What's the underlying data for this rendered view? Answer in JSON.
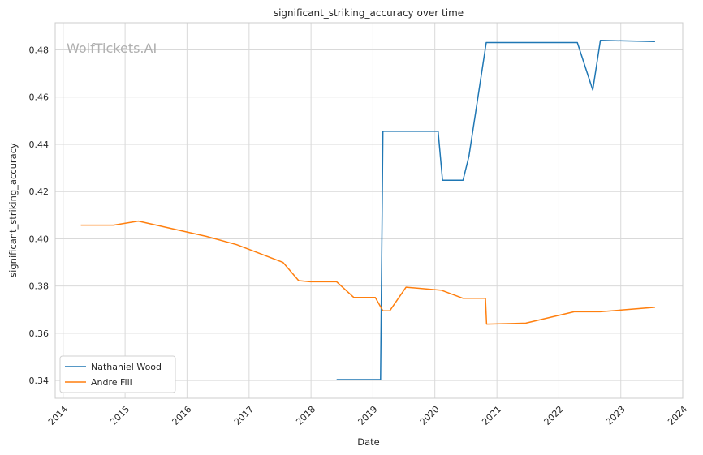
{
  "chart_data": {
    "type": "line",
    "title": "significant_striking_accuracy over time",
    "xlabel": "Date",
    "ylabel": "significant_striking_accuracy",
    "watermark": "WolfTickets.AI",
    "x_ticks": [
      "2014",
      "2015",
      "2016",
      "2017",
      "2018",
      "2019",
      "2020",
      "2021",
      "2022",
      "2023",
      "2024"
    ],
    "y_ticks": [
      "0.34",
      "0.36",
      "0.38",
      "0.40",
      "0.42",
      "0.44",
      "0.46",
      "0.48"
    ],
    "xlim": [
      "2013-11-15",
      "2024-01-01"
    ],
    "ylim": [
      0.3325,
      0.4915
    ],
    "grid": true,
    "legend_position": "lower-left",
    "series": [
      {
        "name": "Nathaniel Wood",
        "color": "#1f77b4",
        "points": [
          [
            "2018-06-01",
            0.3404
          ],
          [
            "2019-02-15",
            0.3404
          ],
          [
            "2019-03-01",
            0.4455
          ],
          [
            "2020-01-20",
            0.4455
          ],
          [
            "2020-02-15",
            0.4248
          ],
          [
            "2020-06-15",
            0.4248
          ],
          [
            "2020-07-20",
            0.435
          ],
          [
            "2020-10-30",
            0.4831
          ],
          [
            "2022-04-20",
            0.4831
          ],
          [
            "2022-07-20",
            0.463
          ],
          [
            "2022-09-03",
            0.484
          ],
          [
            "2023-07-22",
            0.4835
          ]
        ]
      },
      {
        "name": "Andre Fili",
        "color": "#ff7f0e",
        "points": [
          [
            "2014-04-15",
            0.4058
          ],
          [
            "2014-10-25",
            0.4058
          ],
          [
            "2015-03-20",
            0.4075
          ],
          [
            "2016-04-25",
            0.401
          ],
          [
            "2016-10-20",
            0.3975
          ],
          [
            "2017-07-20",
            0.39
          ],
          [
            "2017-10-20",
            0.3823
          ],
          [
            "2017-12-30",
            0.3818
          ],
          [
            "2018-06-01",
            0.3818
          ],
          [
            "2018-09-10",
            0.3752
          ],
          [
            "2019-01-15",
            0.3752
          ],
          [
            "2019-03-01",
            0.3695
          ],
          [
            "2019-04-10",
            0.3695
          ],
          [
            "2019-07-15",
            0.3795
          ],
          [
            "2020-02-10",
            0.3782
          ],
          [
            "2020-06-15",
            0.3748
          ],
          [
            "2020-10-25",
            0.3748
          ],
          [
            "2020-11-01",
            0.3639
          ],
          [
            "2021-06-20",
            0.3643
          ],
          [
            "2022-04-01",
            0.3691
          ],
          [
            "2022-09-01",
            0.3691
          ],
          [
            "2023-07-22",
            0.371
          ]
        ]
      }
    ]
  }
}
